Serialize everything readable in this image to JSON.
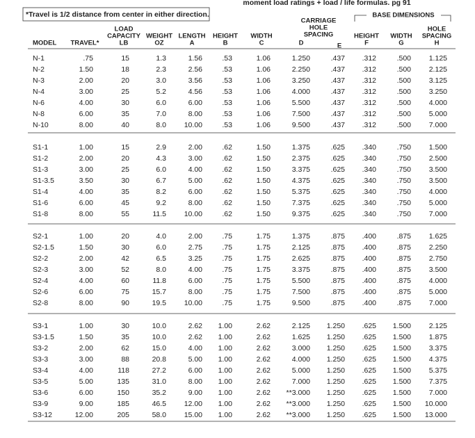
{
  "header": {
    "top_note": "moment load ratings + load / life formulas. pg 91",
    "footnote": "*Travel is 1/2 distance from center in either direction.",
    "carriage_group": [
      "CARRIAGE",
      "HOLE",
      "SPACING"
    ],
    "base_group": "BASE DIMENSIONS"
  },
  "table": {
    "columns": [
      [
        "MODEL"
      ],
      [
        "TRAVEL*"
      ],
      [
        "LOAD",
        "CAPACITY",
        "LB"
      ],
      [
        "WEIGHT",
        "OZ"
      ],
      [
        "LENGTH",
        "A"
      ],
      [
        "HEIGHT",
        "B"
      ],
      [
        "WIDTH",
        "C"
      ],
      [
        "D"
      ],
      [
        "E"
      ],
      [
        "HEIGHT",
        "F"
      ],
      [
        "WIDTH",
        "G"
      ],
      [
        "HOLE",
        "SPACING",
        "H"
      ]
    ],
    "groups": [
      [
        [
          "N-1",
          ".75",
          "15",
          "1.3",
          "1.56",
          ".53",
          "1.06",
          "1.250",
          ".437",
          ".312",
          ".500",
          "1.125"
        ],
        [
          "N-2",
          "1.50",
          "18",
          "2.3",
          "2.56",
          ".53",
          "1.06",
          "2.250",
          ".437",
          ".312",
          ".500",
          "2.125"
        ],
        [
          "N-3",
          "2.00",
          "20",
          "3.0",
          "3.56",
          ".53",
          "1.06",
          "3.250",
          ".437",
          ".312",
          ".500",
          "3.125"
        ],
        [
          "N-4",
          "3.00",
          "25",
          "5.2",
          "4.56",
          ".53",
          "1.06",
          "4.000",
          ".437",
          ".312",
          ".500",
          "3.250"
        ],
        [
          "N-6",
          "4.00",
          "30",
          "6.0",
          "6.00",
          ".53",
          "1.06",
          "5.500",
          ".437",
          ".312",
          ".500",
          "4.000"
        ],
        [
          "N-8",
          "6.00",
          "35",
          "7.0",
          "8.00",
          ".53",
          "1.06",
          "7.500",
          ".437",
          ".312",
          ".500",
          "5.000"
        ],
        [
          "N-10",
          "8.00",
          "40",
          "8.0",
          "10.00",
          ".53",
          "1.06",
          "9.500",
          ".437",
          ".312",
          ".500",
          "7.000"
        ]
      ],
      [
        [
          "S1-1",
          "1.00",
          "15",
          "2.9",
          "2.00",
          ".62",
          "1.50",
          "1.375",
          ".625",
          ".340",
          ".750",
          "1.500"
        ],
        [
          "S1-2",
          "2.00",
          "20",
          "4.3",
          "3.00",
          ".62",
          "1.50",
          "2.375",
          ".625",
          ".340",
          ".750",
          "2.500"
        ],
        [
          "S1-3",
          "3.00",
          "25",
          "6.0",
          "4.00",
          ".62",
          "1.50",
          "3.375",
          ".625",
          ".340",
          ".750",
          "3.500"
        ],
        [
          "S1-3.5",
          "3.50",
          "30",
          "6.7",
          "5.00",
          ".62",
          "1.50",
          "4.375",
          ".625",
          ".340",
          ".750",
          "3.500"
        ],
        [
          "S1-4",
          "4.00",
          "35",
          "8.2",
          "6.00",
          ".62",
          "1.50",
          "5.375",
          ".625",
          ".340",
          ".750",
          "4.000"
        ],
        [
          "S1-6",
          "6.00",
          "45",
          "9.2",
          "8.00",
          ".62",
          "1.50",
          "7.375",
          ".625",
          ".340",
          ".750",
          "5.000"
        ],
        [
          "S1-8",
          "8.00",
          "55",
          "11.5",
          "10.00",
          ".62",
          "1.50",
          "9.375",
          ".625",
          ".340",
          ".750",
          "7.000"
        ]
      ],
      [
        [
          "S2-1",
          "1.00",
          "20",
          "4.0",
          "2.00",
          ".75",
          "1.75",
          "1.375",
          ".875",
          ".400",
          ".875",
          "1.625"
        ],
        [
          "S2-1.5",
          "1.50",
          "30",
          "6.0",
          "2.75",
          ".75",
          "1.75",
          "2.125",
          ".875",
          ".400",
          ".875",
          "2.250"
        ],
        [
          "S2-2",
          "2.00",
          "42",
          "6.5",
          "3.25",
          ".75",
          "1.75",
          "2.625",
          ".875",
          ".400",
          ".875",
          "2.750"
        ],
        [
          "S2-3",
          "3.00",
          "52",
          "8.0",
          "4.00",
          ".75",
          "1.75",
          "3.375",
          ".875",
          ".400",
          ".875",
          "3.500"
        ],
        [
          "S2-4",
          "4.00",
          "60",
          "11.8",
          "6.00",
          ".75",
          "1.75",
          "5.500",
          ".875",
          ".400",
          ".875",
          "4.000"
        ],
        [
          "S2-6",
          "6.00",
          "75",
          "15.7",
          "8.00",
          ".75",
          "1.75",
          "7.500",
          ".875",
          ".400",
          ".875",
          "5.000"
        ],
        [
          "S2-8",
          "8.00",
          "90",
          "19.5",
          "10.00",
          ".75",
          "1.75",
          "9.500",
          ".875",
          ".400",
          ".875",
          "7.000"
        ]
      ],
      [
        [
          "S3-1",
          "1.00",
          "30",
          "10.0",
          "2.62",
          "1.00",
          "2.62",
          "2.125",
          "1.250",
          ".625",
          "1.500",
          "2.125"
        ],
        [
          "S3-1.5",
          "1.50",
          "35",
          "10.0",
          "2.62",
          "1.00",
          "2.62",
          "1.625",
          "1.250",
          ".625",
          "1.500",
          "1.875"
        ],
        [
          "S3-2",
          "2.00",
          "62",
          "15.0",
          "4.00",
          "1.00",
          "2.62",
          "3.000",
          "1.250",
          ".625",
          "1.500",
          "3.375"
        ],
        [
          "S3-3",
          "3.00",
          "88",
          "20.8",
          "5.00",
          "1.00",
          "2.62",
          "4.000",
          "1.250",
          ".625",
          "1.500",
          "4.375"
        ],
        [
          "S3-4",
          "4.00",
          "118",
          "27.2",
          "6.00",
          "1.00",
          "2.62",
          "5.000",
          "1.250",
          ".625",
          "1.500",
          "5.375"
        ],
        [
          "S3-5",
          "5.00",
          "135",
          "31.0",
          "8.00",
          "1.00",
          "2.62",
          "7.000",
          "1.250",
          ".625",
          "1.500",
          "7.375"
        ],
        [
          "S3-6",
          "6.00",
          "150",
          "35.2",
          "9.00",
          "1.00",
          "2.62",
          "**3.000",
          "1.250",
          ".625",
          "1.500",
          "7.000"
        ],
        [
          "S3-9",
          "9.00",
          "185",
          "46.5",
          "12.00",
          "1.00",
          "2.62",
          "**3.000",
          "1.250",
          ".625",
          "1.500",
          "10.000"
        ],
        [
          "S3-12",
          "12.00",
          "205",
          "58.0",
          "15.00",
          "1.00",
          "2.62",
          "**3.000",
          "1.250",
          ".625",
          "1.500",
          "13.000"
        ]
      ]
    ]
  }
}
